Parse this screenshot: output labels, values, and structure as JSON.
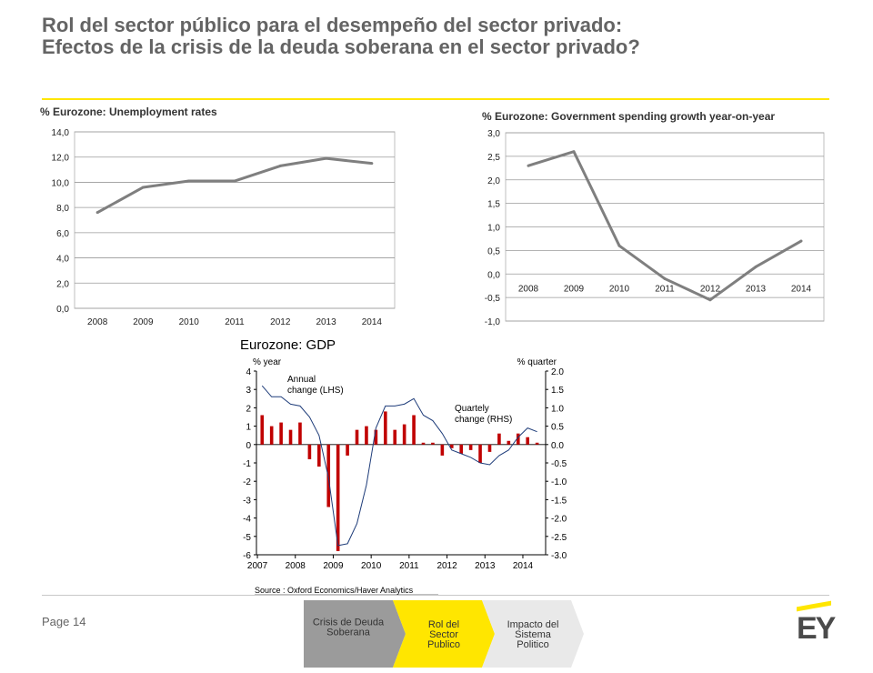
{
  "slide": {
    "title_line1": "Rol del sector público para el desempeño del sector privado:",
    "title_line2": "Efectos de la crisis de la deuda soberana en el sector privado?",
    "page": "Page 14",
    "logo": "EY"
  },
  "colors": {
    "accent": "#ffe600",
    "line": "#7f7f7f",
    "bar": "#c00000",
    "gdp_line": "#1f3d7a"
  },
  "nav": {
    "steps": [
      {
        "label_lines": [
          "Crisis de Deuda",
          "Soberana"
        ],
        "color": "#9b9b9b"
      },
      {
        "label_lines": [
          "Rol del",
          "Sector",
          "Publico"
        ],
        "color": "#ffe600"
      },
      {
        "label_lines": [
          "Impacto del",
          "Sistema",
          "Politico"
        ],
        "color": "#e9e9e9"
      }
    ]
  },
  "chart_data": [
    {
      "type": "line",
      "title": "% Eurozone: Unemployment rates",
      "x": [
        "2008",
        "2009",
        "2010",
        "2011",
        "2012",
        "2013",
        "2014"
      ],
      "series": [
        {
          "values": [
            7.6,
            9.6,
            10.1,
            10.1,
            11.3,
            11.9,
            11.5
          ]
        }
      ],
      "yticks": [
        "0,0",
        "2,0",
        "4,0",
        "6,0",
        "8,0",
        "10,0",
        "12,0",
        "14,0"
      ],
      "ylim": [
        0,
        14
      ],
      "grid": true
    },
    {
      "type": "line",
      "title": "% Eurozone: Government spending growth year-on-year",
      "x": [
        "2008",
        "2009",
        "2010",
        "2011",
        "2012",
        "2013",
        "2014"
      ],
      "series": [
        {
          "values": [
            2.3,
            2.6,
            0.6,
            -0.1,
            -0.55,
            0.15,
            0.7
          ]
        }
      ],
      "yticks": [
        "-1,0",
        "-0,5",
        "0,0",
        "0,5",
        "1,0",
        "1,5",
        "2,0",
        "2,5",
        "3,0"
      ],
      "ylim": [
        -1,
        3
      ],
      "grid": true
    },
    {
      "type": "bar",
      "title": "Eurozone: GDP",
      "left_axis_label": "% year",
      "right_axis_label": "% quarter",
      "annotations": [
        "Annual change (LHS)",
        "Quartely change (RHS)"
      ],
      "source": "Source : Oxford Economics/Haver Analytics",
      "xticks": [
        "2007",
        "2008",
        "2009",
        "2010",
        "2011",
        "2012",
        "2013",
        "2014"
      ],
      "left_ticks": [
        "-6",
        "-5",
        "-4",
        "-3",
        "-2",
        "-1",
        "0",
        "1",
        "2",
        "3",
        "4"
      ],
      "right_ticks": [
        "-3.0",
        "-2.5",
        "-2.0",
        "-1.5",
        "-1.0",
        "-0.5",
        "0.0",
        "0.5",
        "1.0",
        "1.5",
        "2.0"
      ],
      "left_ylim": [
        -6,
        4
      ],
      "right_ylim": [
        -3,
        2
      ],
      "quarters": [
        "2007Q1",
        "2007Q2",
        "2007Q3",
        "2007Q4",
        "2008Q1",
        "2008Q2",
        "2008Q3",
        "2008Q4",
        "2009Q1",
        "2009Q2",
        "2009Q3",
        "2009Q4",
        "2010Q1",
        "2010Q2",
        "2010Q3",
        "2010Q4",
        "2011Q1",
        "2011Q2",
        "2011Q3",
        "2011Q4",
        "2012Q1",
        "2012Q2",
        "2012Q3",
        "2012Q4",
        "2013Q1",
        "2013Q2",
        "2013Q3",
        "2013Q4",
        "2014Q1",
        "2014Q2"
      ],
      "series": [
        {
          "name": "Quartely change (RHS)",
          "axis": "right",
          "kind": "bar",
          "values": [
            0.8,
            0.5,
            0.6,
            0.4,
            0.6,
            -0.4,
            -0.6,
            -1.7,
            -2.9,
            -0.3,
            0.4,
            0.5,
            0.4,
            0.9,
            0.4,
            0.55,
            0.8,
            0.05,
            0.05,
            -0.3,
            -0.1,
            -0.25,
            -0.15,
            -0.5,
            -0.2,
            0.3,
            0.1,
            0.3,
            0.2,
            0.05
          ]
        },
        {
          "name": "Annual change (LHS)",
          "axis": "left",
          "kind": "line",
          "values": [
            3.2,
            2.6,
            2.6,
            2.2,
            2.1,
            1.5,
            0.5,
            -1.8,
            -5.5,
            -5.4,
            -4.3,
            -2.2,
            0.9,
            2.1,
            2.1,
            2.2,
            2.5,
            1.6,
            1.3,
            0.6,
            -0.3,
            -0.5,
            -0.7,
            -1.0,
            -1.1,
            -0.6,
            -0.3,
            0.4,
            0.9,
            0.7
          ]
        }
      ]
    }
  ]
}
